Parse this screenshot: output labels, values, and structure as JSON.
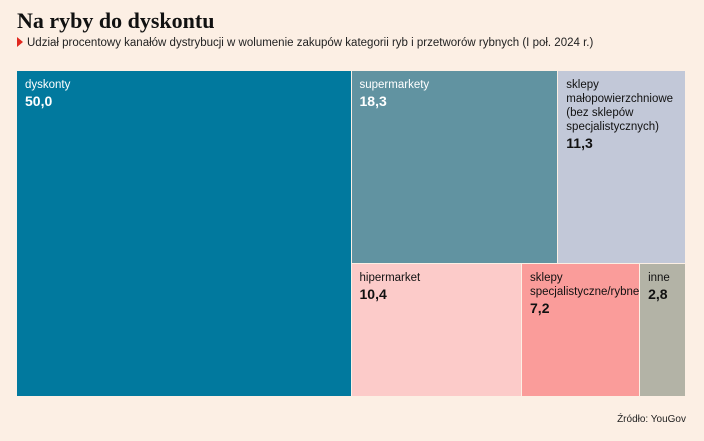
{
  "chart_data": {
    "type": "treemap",
    "title": "Na ryby do dyskontu",
    "subtitle": "Udział procentowy kanałów dystrybucji w wolumenie zakupów kategorii ryb i przetworów rybnych (I poł. 2024 r.)",
    "source": "Źródło: YouGov",
    "categories": [
      "dyskonty",
      "supermarkety",
      "sklepy małopowierzchniowe (bez sklepów specjalistycznych)",
      "hipermarket",
      "sklepy specjalistyczne/rybne",
      "inne"
    ],
    "values": [
      50.0,
      18.3,
      11.3,
      10.4,
      7.2,
      2.8
    ],
    "value_labels": [
      "50,0",
      "18,3",
      "11,3",
      "10,4",
      "7,2",
      "2,8"
    ],
    "colors": [
      "#01799e",
      "#6193a1",
      "#c2c8d8",
      "#fccbc9",
      "#fa9c9a",
      "#b3b3a6"
    ]
  }
}
